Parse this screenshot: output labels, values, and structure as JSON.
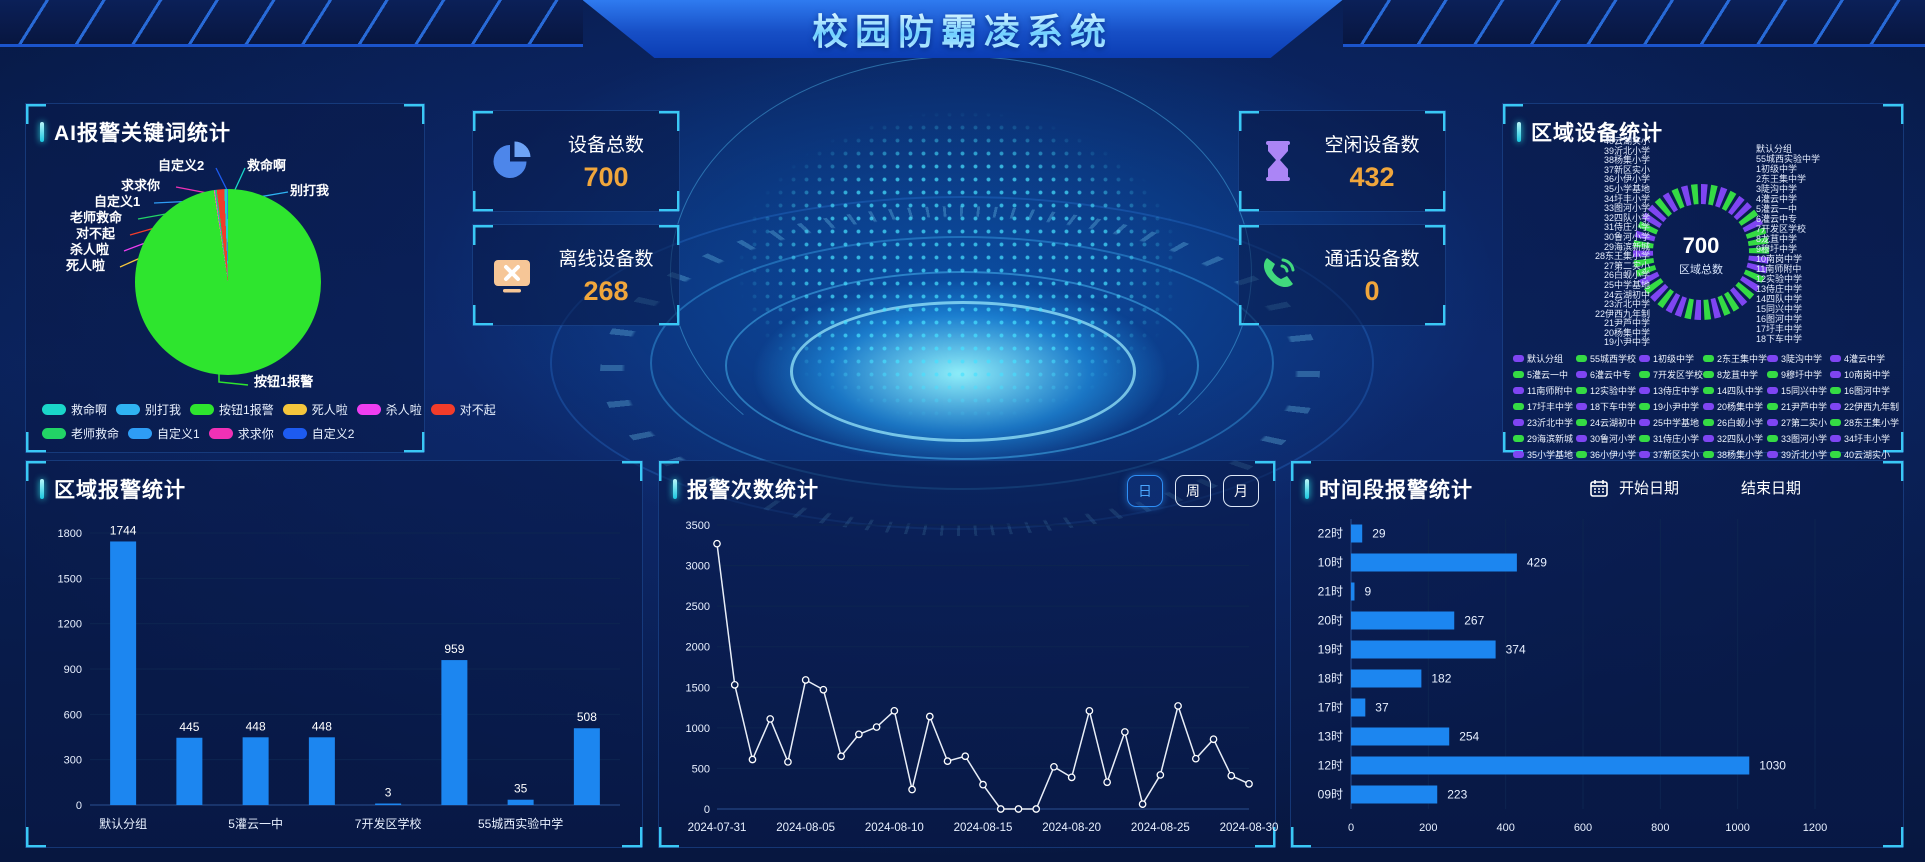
{
  "header": {
    "title": "校园防霸凌系统"
  },
  "stat_cards": [
    {
      "label": "设备总数",
      "value": "700",
      "icon": "pie-chart-icon"
    },
    {
      "label": "离线设备数",
      "value": "268",
      "icon": "offline-monitor-icon"
    },
    {
      "label": "空闲设备数",
      "value": "432",
      "icon": "hourglass-icon"
    },
    {
      "label": "通话设备数",
      "value": "0",
      "icon": "phone-call-icon"
    }
  ],
  "accent": {
    "value_color": "#f0a63c",
    "bar_blue": "#1c86f0",
    "donut_green": "#35db44",
    "donut_purple": "#7f45f2"
  },
  "panels": {
    "keyword": {
      "title": "AI报警关键词统计"
    },
    "donut": {
      "title": "区域设备统计",
      "center_value": "700",
      "center_label": "区域总数"
    },
    "region_bar": {
      "title": "区域报警统计"
    },
    "line": {
      "title": "报警次数统计",
      "buttons": [
        "日",
        "周",
        "月"
      ],
      "active_button": "日"
    },
    "hbar": {
      "title": "时间段报警统计",
      "start_date_label": "开始日期",
      "end_date_label": "结束日期"
    }
  },
  "chart_data": [
    {
      "id": "keyword_pie",
      "type": "pie",
      "title": "AI报警关键词统计",
      "slices": [
        {
          "label": "按钮1报警",
          "value": 97.55,
          "color": "#2ee52e"
        },
        {
          "label": "死人啦",
          "value": 0.06,
          "color": "#f5c63c"
        },
        {
          "label": "杀人啦",
          "value": 0.08,
          "color": "#ef3ef0"
        },
        {
          "label": "求求你",
          "value": 0.06,
          "color": "#f031b5"
        },
        {
          "label": "自定义1",
          "value": 0.06,
          "color": "#2e9df5"
        },
        {
          "label": "老师救命",
          "value": 0.25,
          "color": "#22d466"
        },
        {
          "label": "对不起",
          "value": 1.3,
          "color": "#f23c2a"
        },
        {
          "label": "救命啊",
          "value": 0.45,
          "color": "#1ad6c9"
        },
        {
          "label": "自定义2",
          "value": 0.09,
          "color": "#1d5bf0"
        },
        {
          "label": "别打我",
          "value": 0.1,
          "color": "#2fb3f2"
        }
      ],
      "callouts": [
        "自定义2",
        "救命啊",
        "别打我",
        "求求你",
        "自定义1",
        "老师救命",
        "对不起",
        "杀人啦",
        "死人啦"
      ],
      "bottom_callout": "按钮1报警",
      "legend_rows": [
        [
          {
            "label": "救命啊",
            "color": "#1ad6c9"
          },
          {
            "label": "别打我",
            "color": "#2fb3f2"
          },
          {
            "label": "按钮1报警",
            "color": "#2ee52e"
          },
          {
            "label": "死人啦",
            "color": "#f5c63c"
          },
          {
            "label": "杀人啦",
            "color": "#ef3ef0"
          },
          {
            "label": "对不起",
            "color": "#f23c2a"
          }
        ],
        [
          {
            "label": "老师救命",
            "color": "#22d466"
          },
          {
            "label": "自定义1",
            "color": "#2e9df5"
          },
          {
            "label": "求求你",
            "color": "#f031b5"
          },
          {
            "label": "自定义2",
            "color": "#1d5bf0"
          }
        ]
      ]
    },
    {
      "id": "region_bar",
      "type": "bar",
      "title": "区域报警统计",
      "values": [
        1744,
        445,
        448,
        448,
        3,
        959,
        35,
        508
      ],
      "x_tick_labels": [
        "默认分组",
        "5灌云一中",
        "7开发区学校",
        "55城西实验中学"
      ],
      "ylim": [
        0,
        1800
      ],
      "ystep": 300
    },
    {
      "id": "alarm_line",
      "type": "line",
      "title": "报警次数统计",
      "values": [
        3270,
        1530,
        610,
        1110,
        580,
        1590,
        1470,
        650,
        920,
        1010,
        1210,
        240,
        1140,
        590,
        650,
        300,
        0,
        0,
        0,
        520,
        390,
        1210,
        330,
        950,
        60,
        420,
        1270,
        620,
        860,
        410,
        310
      ],
      "x_tick_labels": [
        "2024-07-31",
        "2024-08-05",
        "2024-08-10",
        "2024-08-15",
        "2024-08-20",
        "2024-08-25",
        "2024-08-30"
      ],
      "ylim": [
        0,
        3500
      ],
      "ystep": 500
    },
    {
      "id": "hour_hbar",
      "type": "hbar",
      "title": "时间段报警统计",
      "categories": [
        "22时",
        "10时",
        "21时",
        "20时",
        "19时",
        "18时",
        "17时",
        "13时",
        "12时",
        "09时"
      ],
      "values": [
        29,
        429,
        9,
        267,
        374,
        182,
        37,
        254,
        1030,
        223
      ],
      "xlim": [
        0,
        1200
      ],
      "xstep": 200
    },
    {
      "id": "region_donut",
      "type": "donut",
      "title": "区域设备统计",
      "total": 700,
      "left_labels": [
        "40云湖实小",
        "39沂北小学",
        "38杨集小学",
        "37新区实小",
        "36小伊小学",
        "35小学基地",
        "34圩丰小学",
        "33图河小学",
        "32四队小学",
        "31侍庄小学",
        "30鲁河小学",
        "29海滨新城",
        "28东王集小学",
        "27第二实小",
        "26白蚬小学",
        "25中学基地",
        "24云湖初中",
        "23沂北中学",
        "22伊西九年制",
        "21尹芦中学",
        "20杨集中学",
        "19小尹中学"
      ],
      "right_labels": [
        "默认分组",
        "55城西实验中学",
        "1初级中学",
        "2东王集中学",
        "3陡沟中学",
        "4灌云中学",
        "5灌云一中",
        "6灌云中专",
        "7开发区学校",
        "8龙苴中学",
        "9穆圩中学",
        "10南岗中学",
        "11南师附中",
        "12实验中学",
        "13侍庄中学",
        "14四队中学",
        "15同兴中学",
        "16图河中学",
        "17圩丰中学",
        "18下车中学"
      ],
      "legend": [
        {
          "label": "默认分组",
          "color": "purple"
        },
        {
          "label": "55城西学校",
          "color": "green"
        },
        {
          "label": "1初级中学",
          "color": "purple"
        },
        {
          "label": "2东王集中学",
          "color": "green"
        },
        {
          "label": "3陡沟中学",
          "color": "purple"
        },
        {
          "label": "4灌云中学",
          "color": "purple"
        },
        {
          "label": "5灌云一中",
          "color": "green"
        },
        {
          "label": "6灌云中专",
          "color": "purple"
        },
        {
          "label": "7开发区学校",
          "color": "green"
        },
        {
          "label": "8龙苴中学",
          "color": "green"
        },
        {
          "label": "9穆圩中学",
          "color": "green"
        },
        {
          "label": "10南岗中学",
          "color": "purple"
        },
        {
          "label": "11南师附中",
          "color": "purple"
        },
        {
          "label": "12实验中学",
          "color": "green"
        },
        {
          "label": "13侍庄中学",
          "color": "purple"
        },
        {
          "label": "14四队中学",
          "color": "green"
        },
        {
          "label": "15同兴中学",
          "color": "purple"
        },
        {
          "label": "16图河中学",
          "color": "green"
        },
        {
          "label": "17圩丰中学",
          "color": "green"
        },
        {
          "label": "18下车中学",
          "color": "purple"
        },
        {
          "label": "19小尹中学",
          "color": "green"
        },
        {
          "label": "20杨集中学",
          "color": "purple"
        },
        {
          "label": "21尹芦中学",
          "color": "green"
        },
        {
          "label": "22伊西九年制",
          "color": "purple"
        },
        {
          "label": "23沂北中学",
          "color": "purple"
        },
        {
          "label": "24云湖初中",
          "color": "green"
        },
        {
          "label": "25中学基地",
          "color": "purple"
        },
        {
          "label": "26白蚬小学",
          "color": "green"
        },
        {
          "label": "27第二实小",
          "color": "purple"
        },
        {
          "label": "28东王集小学",
          "color": "green"
        },
        {
          "label": "29海滨新城",
          "color": "green"
        },
        {
          "label": "30鲁河小学",
          "color": "purple"
        },
        {
          "label": "31侍庄小学",
          "color": "green"
        },
        {
          "label": "32四队小学",
          "color": "purple"
        },
        {
          "label": "33图河小学",
          "color": "green"
        },
        {
          "label": "34圩丰小学",
          "color": "purple"
        },
        {
          "label": "35小学基地",
          "color": "purple"
        },
        {
          "label": "36小伊小学",
          "color": "green"
        },
        {
          "label": "37新区实小",
          "color": "purple"
        },
        {
          "label": "38杨集小学",
          "color": "green"
        },
        {
          "label": "39沂北小学",
          "color": "purple"
        },
        {
          "label": "40云湖实小",
          "color": "green"
        }
      ]
    }
  ]
}
